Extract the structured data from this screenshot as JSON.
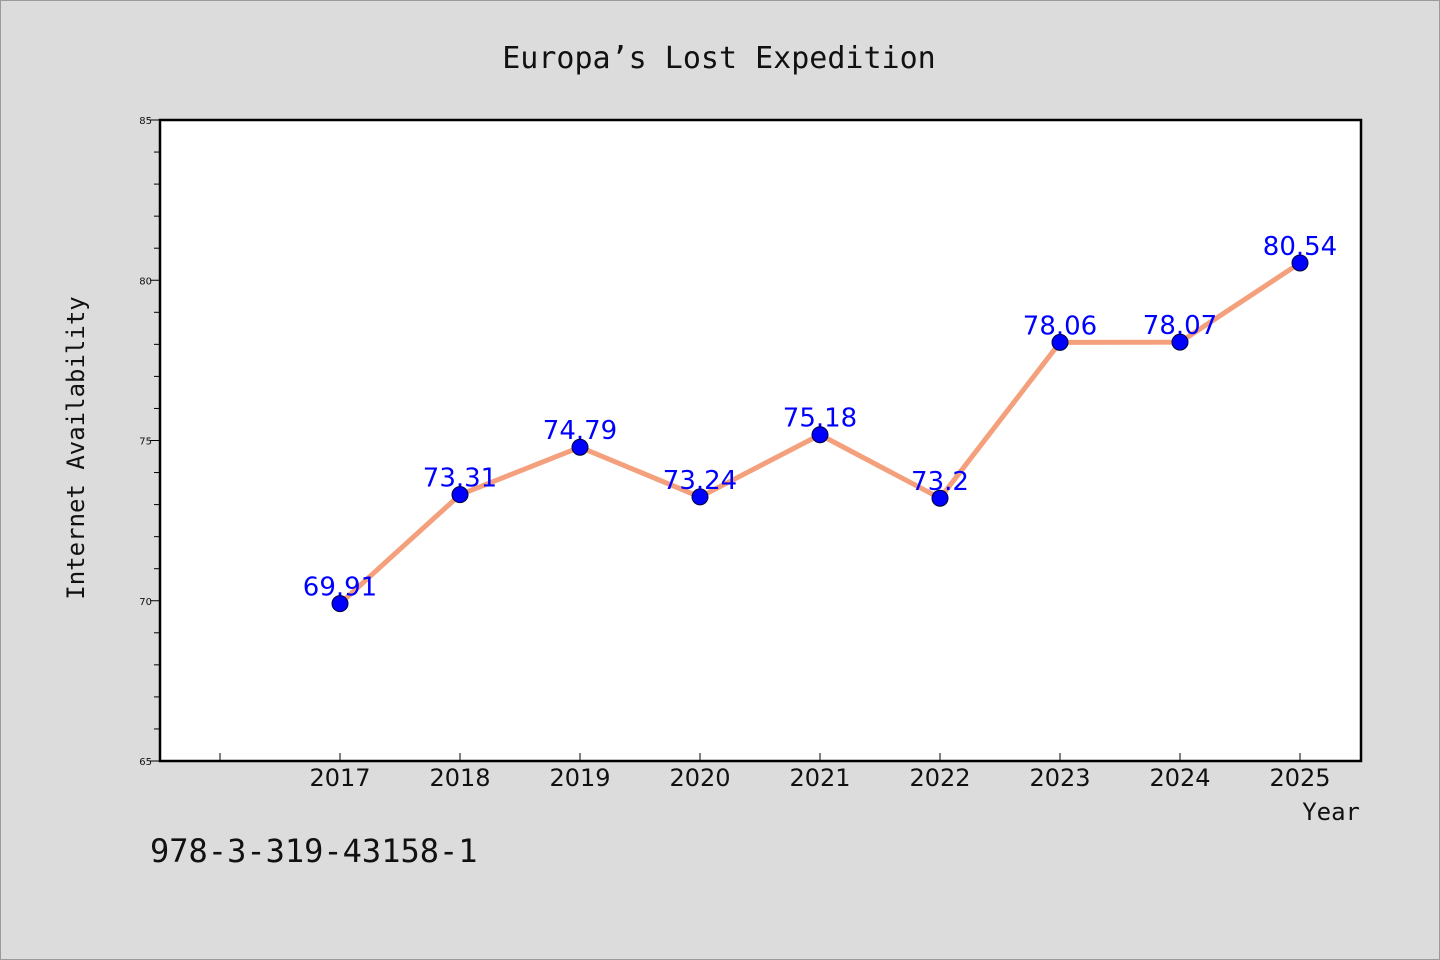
{
  "chart_data": {
    "type": "line",
    "title": "Europa’s Lost Expedition",
    "xlabel": "Year",
    "ylabel": "Internet Availability",
    "categories": [
      "2017",
      "2018",
      "2019",
      "2020",
      "2021",
      "2022",
      "2023",
      "2024",
      "2025"
    ],
    "series": [
      {
        "values": [
          69.91,
          73.31,
          74.79,
          73.24,
          75.18,
          73.2,
          78.06,
          78.07,
          80.54
        ],
        "data_labels": [
          "69.91",
          "73.31",
          "74.79",
          "73.24",
          "75.18",
          "73.2",
          "78.06",
          "78.07",
          "80.54"
        ]
      }
    ],
    "ylim": [
      65,
      85
    ],
    "yticks": [
      "65",
      "70",
      "75",
      "80",
      "85"
    ],
    "grid": false,
    "colors": {
      "line": "#f4a07c",
      "marker": "#0000ff",
      "label": "#0000ff",
      "plot_bg": "#ffffff",
      "page_bg": "#dcdcdc"
    }
  },
  "footer": {
    "code": "978-3-319-43158-1"
  }
}
